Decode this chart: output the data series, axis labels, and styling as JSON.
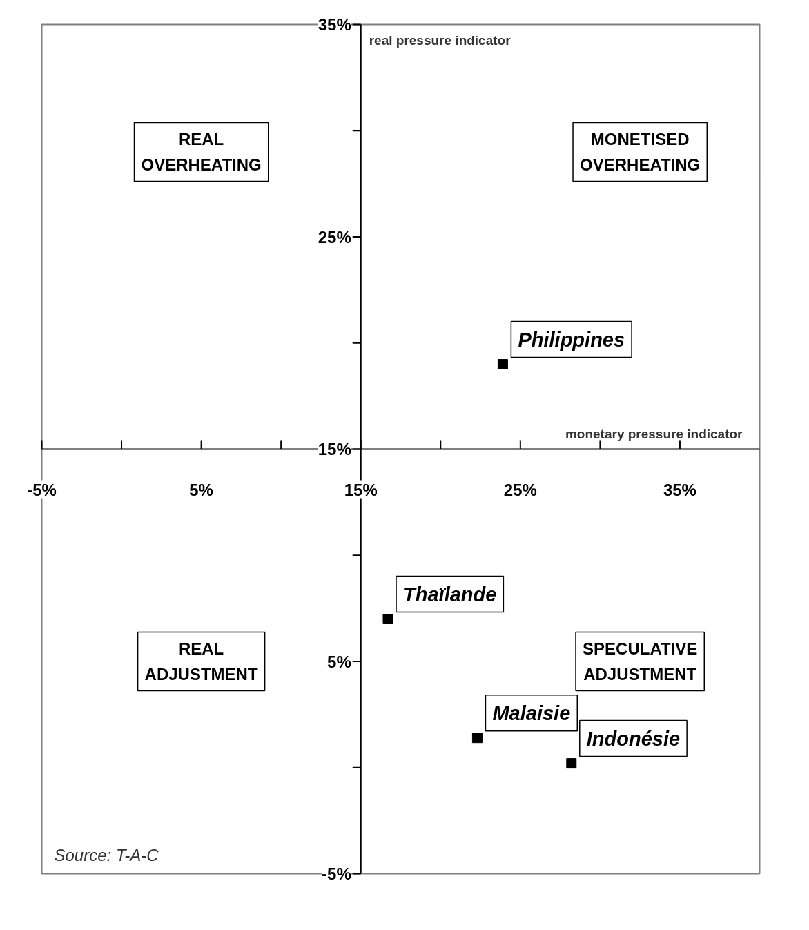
{
  "chart_data": {
    "type": "scatter",
    "xlabel": "monetary pressure indicator",
    "ylabel": "real pressure indicator",
    "x": [
      23.9,
      16.7,
      22.3,
      28.2
    ],
    "series": [
      {
        "color": "#000000",
        "values": [
          19.0,
          7.0,
          1.4,
          0.2
        ],
        "value_labels": [
          "Philippines",
          "Thaïlande",
          "Malaisie",
          "Indonésie"
        ]
      }
    ],
    "xlim": [
      -5,
      40
    ],
    "ylim": [
      -5,
      35
    ],
    "xticks": [
      {
        "value": -5,
        "label": "-5%"
      },
      {
        "value": 5,
        "label": "5%"
      },
      {
        "value": 15,
        "label": "15%"
      },
      {
        "value": 25,
        "label": "25%"
      },
      {
        "value": 35,
        "label": "35%"
      }
    ],
    "yticks": [
      {
        "value": -5,
        "label": "-5%"
      },
      {
        "value": 5,
        "label": "5%"
      },
      {
        "value": 15,
        "label": "15%"
      },
      {
        "value": 25,
        "label": "25%"
      },
      {
        "value": 35,
        "label": "35%"
      }
    ],
    "annotations": [
      "REAL\nOVERHEATING",
      "MONETISED\nOVERHEATING",
      "REAL\nADJUSTMENT",
      "SPECULATIVE\nADJUSTMENT",
      "Source: T-A-C"
    ],
    "grid": false,
    "marker": "square"
  }
}
